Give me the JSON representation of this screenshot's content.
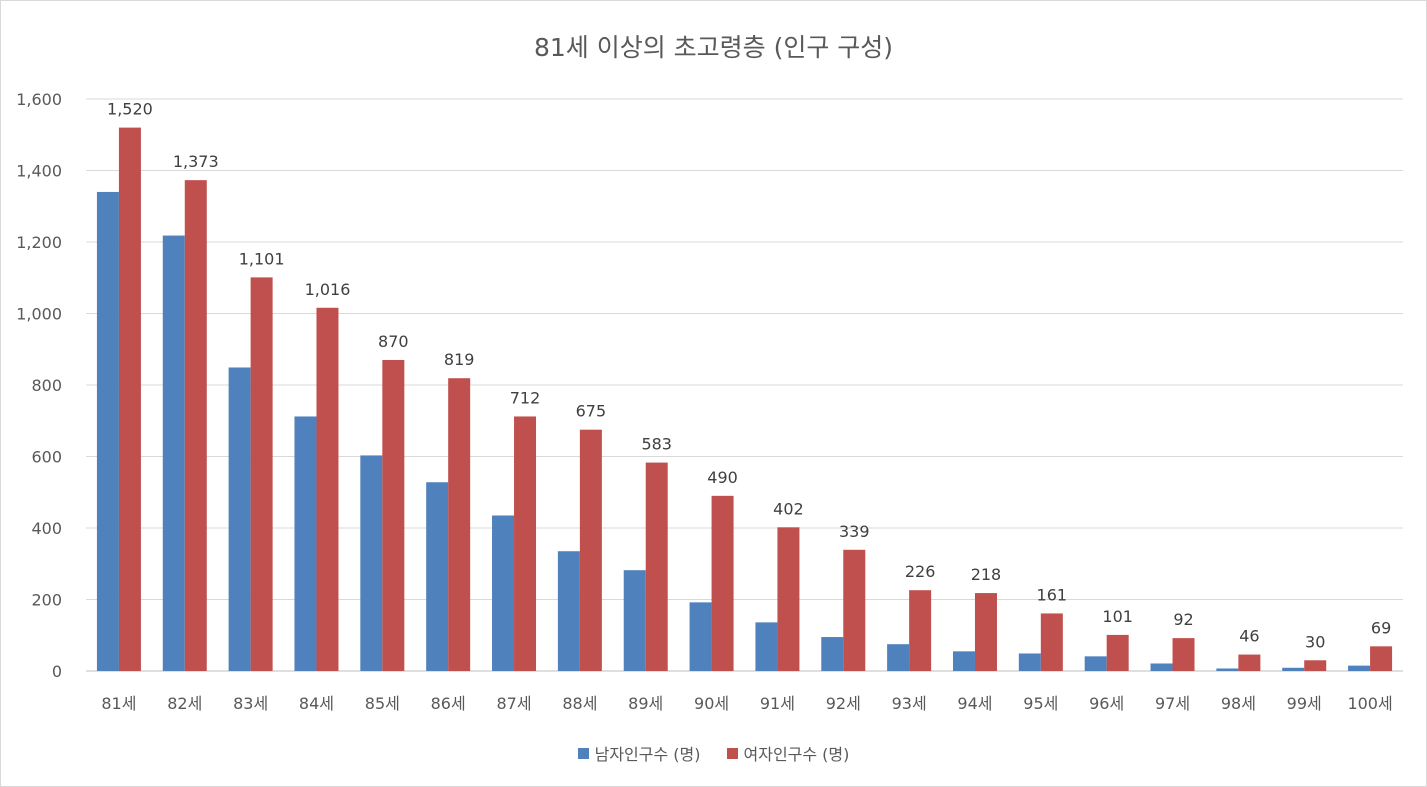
{
  "chart_data": {
    "type": "bar",
    "title": "81세 이상의 초고령층 (인구 구성)",
    "categories": [
      "81세",
      "82세",
      "83세",
      "84세",
      "85세",
      "86세",
      "87세",
      "88세",
      "89세",
      "90세",
      "91세",
      "92세",
      "93세",
      "94세",
      "95세",
      "96세",
      "97세",
      "98세",
      "99세",
      "100세"
    ],
    "series": [
      {
        "name": "남자인구수 (명)",
        "color": "#4f81bd",
        "values": [
          1340,
          1218,
          849,
          712,
          603,
          528,
          435,
          335,
          282,
          192,
          136,
          95,
          75,
          55,
          49,
          41,
          21,
          7,
          9,
          15
        ]
      },
      {
        "name": "여자인구수 (명)",
        "color": "#c0504d",
        "values": [
          1520,
          1373,
          1101,
          1016,
          870,
          819,
          712,
          675,
          583,
          490,
          402,
          339,
          226,
          218,
          161,
          101,
          92,
          46,
          30,
          69
        ]
      }
    ],
    "data_labels": [
      "1,520",
      "1,373",
      "1,101",
      "1,016",
      "870",
      "819",
      "712",
      "675",
      "583",
      "490",
      "402",
      "339",
      "226",
      "218",
      "161",
      "101",
      "92",
      "46",
      "30",
      "69"
    ],
    "y_ticks": [
      "0",
      "200",
      "400",
      "600",
      "800",
      "1,000",
      "1,200",
      "1,400",
      "1,600"
    ],
    "ylim": [
      0,
      1600
    ],
    "grid": true,
    "legend_position": "bottom"
  }
}
